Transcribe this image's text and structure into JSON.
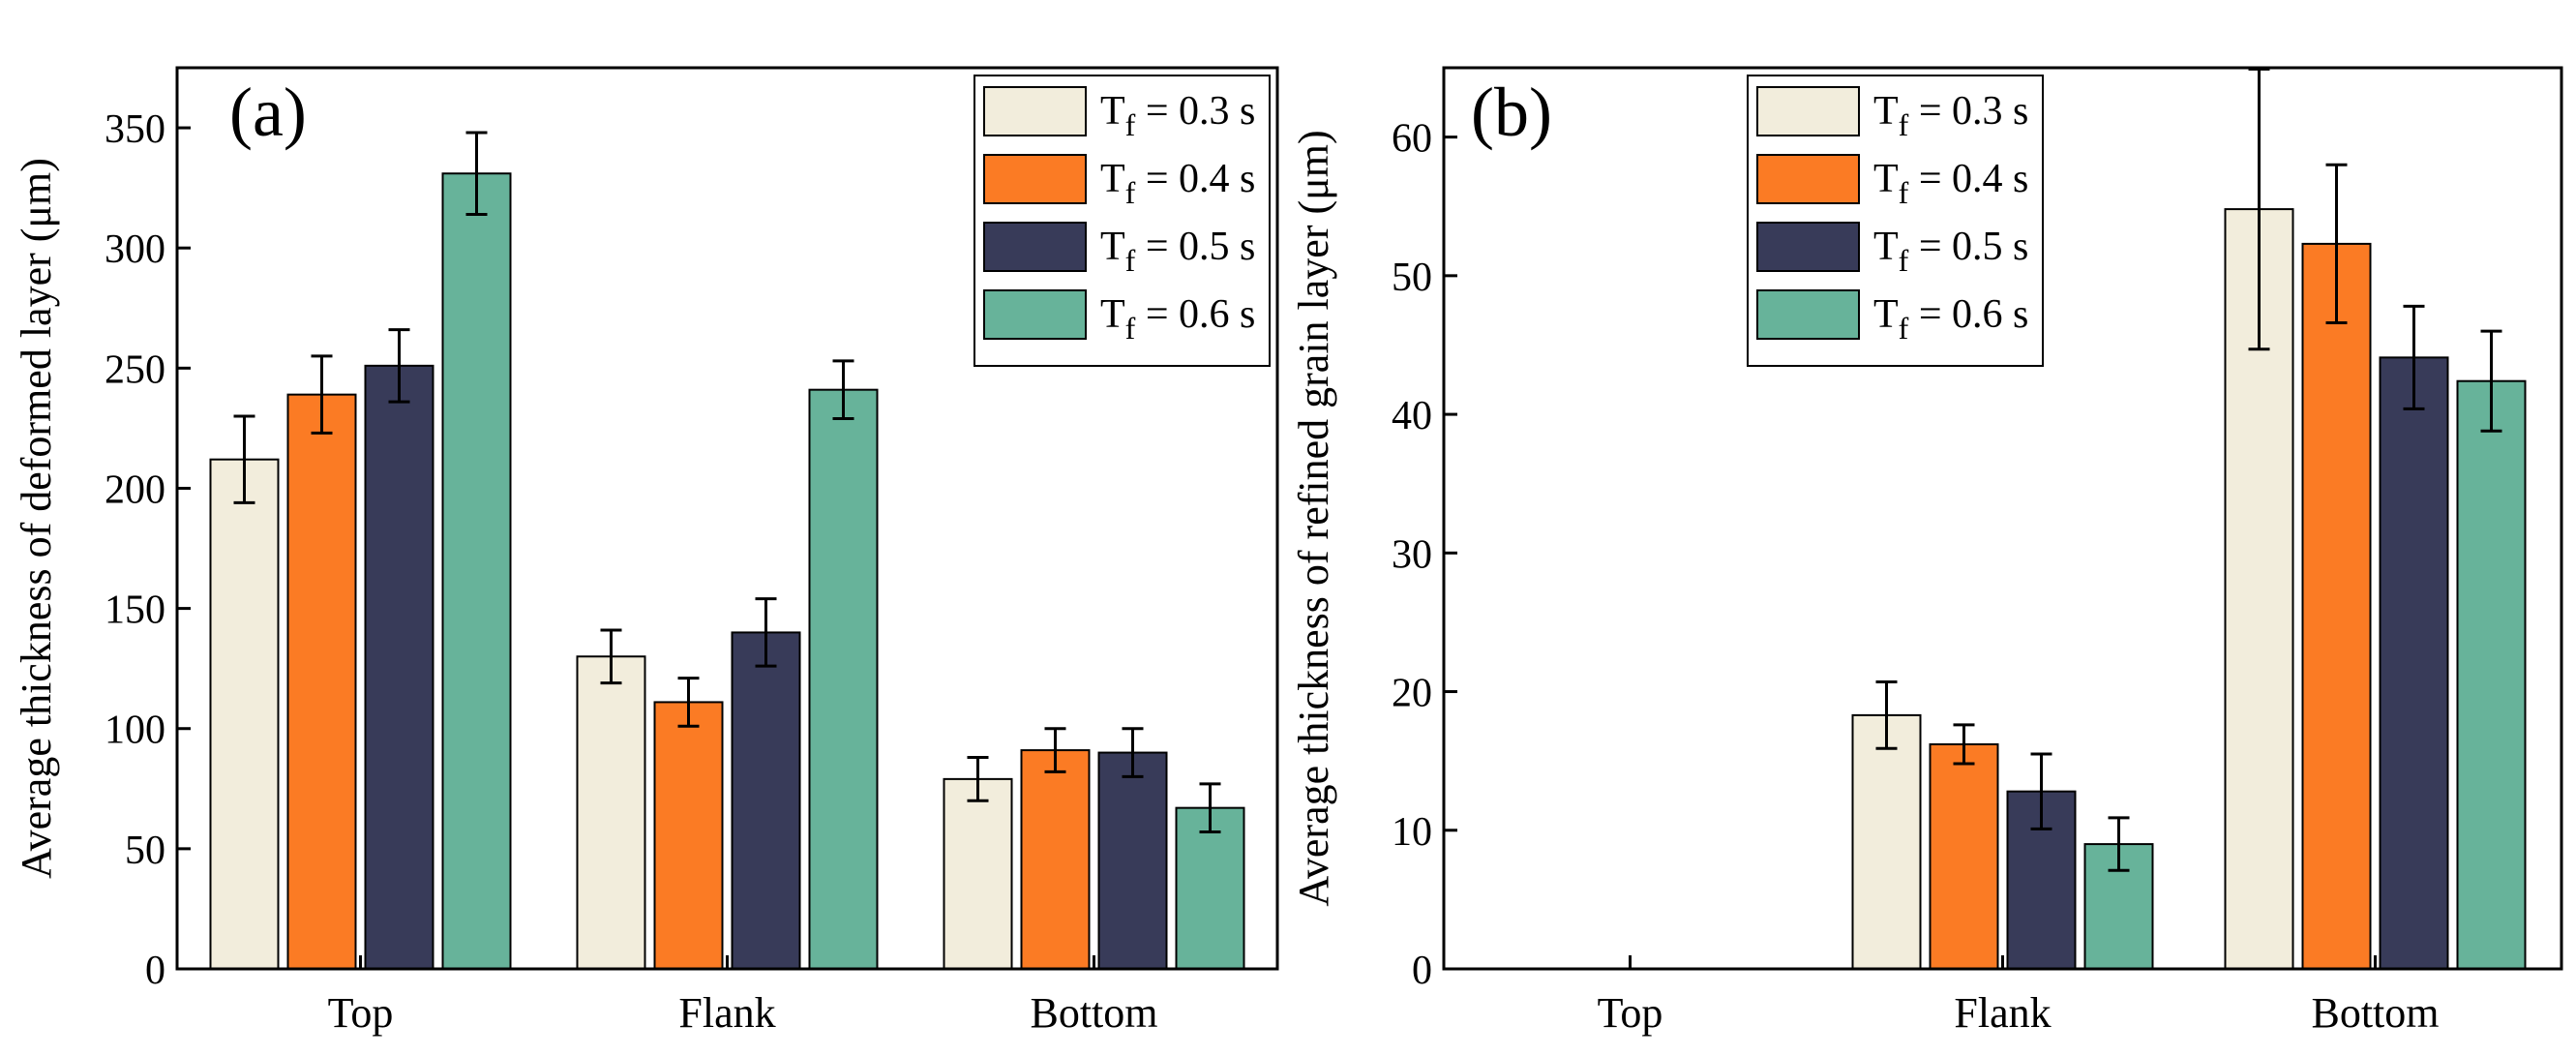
{
  "chart_data": [
    {
      "panel_label": "(a)",
      "type": "bar",
      "categories": [
        "Top",
        "Flank",
        "Bottom"
      ],
      "ylabel": "Average thickness of deformed layer (μm)",
      "ylim": [
        0,
        375
      ],
      "yticks": [
        0,
        50,
        100,
        150,
        200,
        250,
        300,
        350
      ],
      "legend_position": "top-right",
      "series": [
        {
          "name": "T_f = 0.3 s",
          "values": [
            212,
            130,
            79
          ],
          "errors": [
            18,
            11,
            9
          ]
        },
        {
          "name": "T_f = 0.4 s",
          "values": [
            239,
            111,
            91
          ],
          "errors": [
            16,
            10,
            9
          ]
        },
        {
          "name": "T_f = 0.5 s",
          "values": [
            251,
            140,
            90
          ],
          "errors": [
            15,
            14,
            10
          ]
        },
        {
          "name": "T_f = 0.6 s",
          "values": [
            331,
            241,
            67
          ],
          "errors": [
            17,
            12,
            10
          ]
        }
      ]
    },
    {
      "panel_label": "(b)",
      "type": "bar",
      "categories": [
        "Top",
        "Flank",
        "Bottom"
      ],
      "ylabel": "Average thickness of refined grain layer (μm)",
      "ylim": [
        0,
        65
      ],
      "yticks": [
        0,
        10,
        20,
        30,
        40,
        50,
        60
      ],
      "legend_position": "top-center",
      "series": [
        {
          "name": "T_f = 0.3 s",
          "values": [
            null,
            18.3,
            54.8
          ],
          "errors": [
            null,
            2.4,
            10.1
          ]
        },
        {
          "name": "T_f = 0.4 s",
          "values": [
            null,
            16.2,
            52.3
          ],
          "errors": [
            null,
            1.4,
            5.7
          ]
        },
        {
          "name": "T_f = 0.5 s",
          "values": [
            null,
            12.8,
            44.1
          ],
          "errors": [
            null,
            2.7,
            3.7
          ]
        },
        {
          "name": "T_f = 0.6 s",
          "values": [
            null,
            9.0,
            42.4
          ],
          "errors": [
            null,
            1.9,
            3.6
          ]
        }
      ]
    }
  ],
  "legend_entries": [
    {
      "prefix": "T",
      "sub": "f",
      "suffix": " = 0.3 s"
    },
    {
      "prefix": "T",
      "sub": "f",
      "suffix": " = 0.4 s"
    },
    {
      "prefix": "T",
      "sub": "f",
      "suffix": " = 0.5 s"
    },
    {
      "prefix": "T",
      "sub": "f",
      "suffix": " = 0.6 s"
    }
  ],
  "colors": {
    "series": [
      "#f2eddc",
      "#fb7b24",
      "#383b59",
      "#67b39a"
    ],
    "axis": "#000000",
    "background": "#ffffff"
  }
}
